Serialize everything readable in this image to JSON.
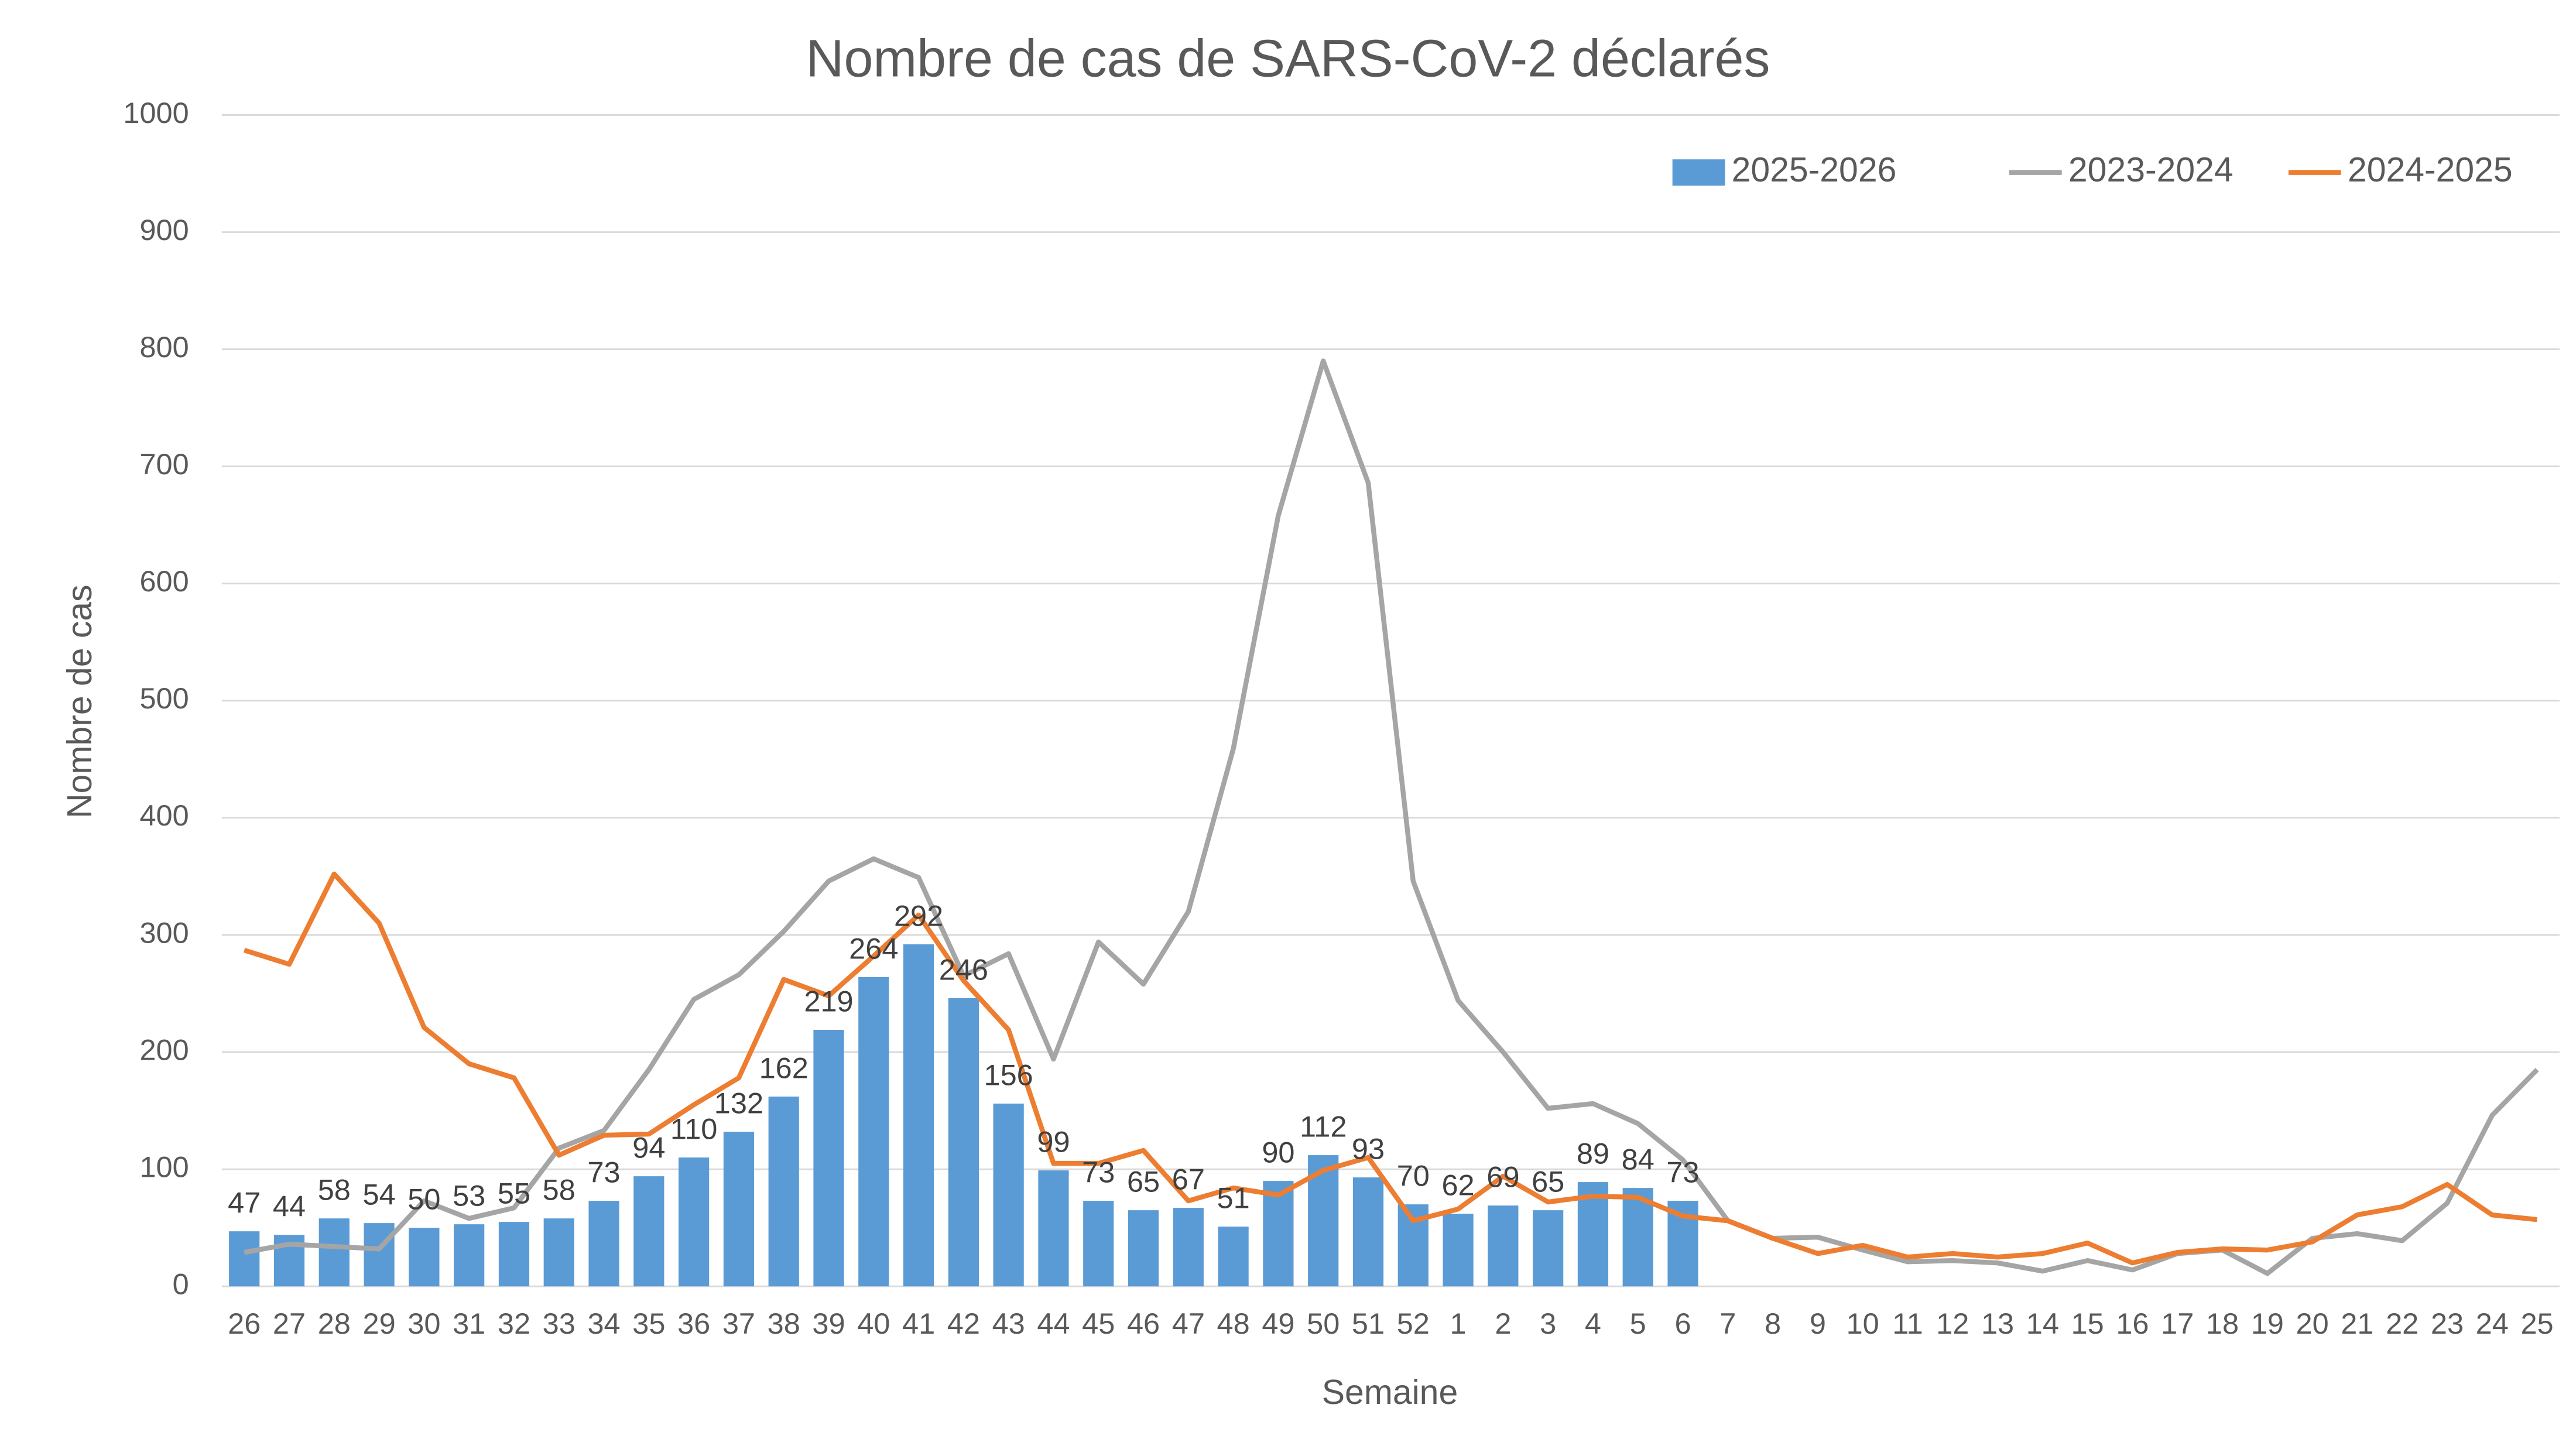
{
  "chart_data": {
    "type": "bar-line",
    "title": "Nombre de cas de SARS-CoV-2 déclarés",
    "x_label": "Semaine",
    "y_label": "Nombre de cas",
    "categories": [
      "26",
      "27",
      "28",
      "29",
      "30",
      "31",
      "32",
      "33",
      "34",
      "35",
      "36",
      "37",
      "38",
      "39",
      "40",
      "41",
      "42",
      "43",
      "44",
      "45",
      "46",
      "47",
      "48",
      "49",
      "50",
      "51",
      "52",
      "1",
      "2",
      "3",
      "4",
      "5",
      "6",
      "7",
      "8",
      "9",
      "10",
      "11",
      "12",
      "13",
      "14",
      "15",
      "16",
      "17",
      "18",
      "19",
      "20",
      "21",
      "22",
      "23",
      "24",
      "25"
    ],
    "series": [
      {
        "name": "2025-2026",
        "type": "bar",
        "color": "#5b9bd5",
        "values": [
          47,
          44,
          58,
          54,
          50,
          53,
          55,
          58,
          73,
          94,
          110,
          132,
          162,
          219,
          264,
          292,
          246,
          156,
          99,
          73,
          65,
          67,
          51,
          90,
          112,
          93,
          70,
          62,
          69,
          65,
          89,
          84,
          73,
          null,
          null,
          null,
          null,
          null,
          null,
          null,
          null,
          null,
          null,
          null,
          null,
          null,
          null,
          null,
          null,
          null,
          null,
          null
        ]
      },
      {
        "name": "2023-2024",
        "type": "line",
        "color": "#a5a5a5",
        "values": [
          29,
          36,
          34,
          32,
          73,
          58,
          67,
          118,
          133,
          185,
          245,
          266,
          303,
          346,
          365,
          349,
          265,
          284,
          194,
          294,
          258,
          320,
          459,
          658,
          790,
          686,
          346,
          244,
          200,
          152,
          156,
          139,
          108,
          56,
          41,
          42,
          31,
          21,
          22,
          20,
          13,
          22,
          14,
          28,
          31,
          11,
          41,
          45,
          39,
          71,
          146,
          185
        ]
      },
      {
        "name": "2024-2025",
        "type": "line",
        "color": "#ed7d31",
        "values": [
          287,
          275,
          352,
          310,
          221,
          190,
          178,
          112,
          129,
          130,
          155,
          178,
          262,
          248,
          282,
          317,
          261,
          219,
          105,
          105,
          116,
          73,
          84,
          78,
          99,
          110,
          56,
          66,
          94,
          72,
          77,
          76,
          60,
          56,
          41,
          28,
          35,
          25,
          28,
          25,
          28,
          37,
          20,
          29,
          32,
          31,
          38,
          61,
          68,
          87,
          61,
          57
        ]
      }
    ],
    "legend_order": [
      0,
      1,
      2
    ],
    "legend": "top-right",
    "ylim": [
      0,
      1000
    ],
    "yticks": [
      0,
      100,
      200,
      300,
      400,
      500,
      600,
      700,
      800,
      900,
      1000
    ],
    "grid": true
  }
}
